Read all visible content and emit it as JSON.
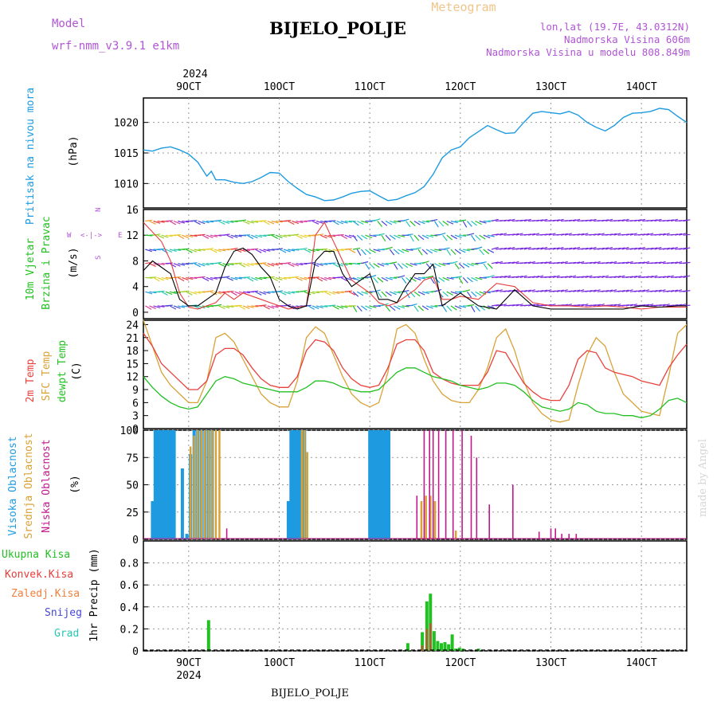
{
  "header": {
    "model_label": "Model",
    "model_name": "wrf-nmm_v3.9.1 e1km",
    "station": "BIJELO_POLJE",
    "product": "Meteogram",
    "lonlat": "lon,lat (19.7E, 43.0312N)",
    "elevation": "Nadmorska Visina 606m",
    "model_elevation": "Nadmorska Visina u modelu 808.849m"
  },
  "footer": {
    "station": "BIJELO_POLJE",
    "credit": "made by Angel"
  },
  "colors": {
    "pressure": "#1E9BE0",
    "wind_speed": "#000000",
    "gust": "#E83C3C",
    "t2m": "#E8413C",
    "sfc": "#D9A237",
    "dewpt": "#22C022",
    "high_cloud": "#1E9BE0",
    "mid_cloud": "#D9A237",
    "low_cloud": "#C0198C",
    "total_precip": "#22C022",
    "conv_precip": "#E83C3C",
    "frozen_precip": "#F07F3C",
    "snow": "#4646D8",
    "hail": "#28C8B4",
    "title_purple": "#B055D6",
    "meteogram_orange": "#F0C58A"
  },
  "chart_data": [
    {
      "panel": "pressure",
      "type": "line",
      "title": "Pritisak na nivou mora",
      "ylabel": "(hPa)",
      "ylim": [
        1006,
        1024
      ],
      "yticks": [
        1010,
        1015,
        1020
      ],
      "x_day_range": [
        8.5,
        14.5
      ],
      "x_top_year": "2024",
      "x_bottom_year": "2024",
      "x_tick_labels": [
        "9OCT",
        "10OCT",
        "11OCT",
        "12OCT",
        "13OCT",
        "14OCT"
      ],
      "x_tick_days": [
        9,
        10,
        11,
        12,
        13,
        14
      ],
      "x": [
        8.5,
        8.6,
        8.7,
        8.8,
        8.9,
        9.0,
        9.1,
        9.2,
        9.25,
        9.3,
        9.4,
        9.5,
        9.6,
        9.7,
        9.8,
        9.9,
        10.0,
        10.1,
        10.2,
        10.3,
        10.4,
        10.5,
        10.6,
        10.7,
        10.8,
        10.9,
        11.0,
        11.1,
        11.2,
        11.3,
        11.4,
        11.5,
        11.6,
        11.7,
        11.8,
        11.9,
        12.0,
        12.1,
        12.2,
        12.3,
        12.4,
        12.5,
        12.6,
        12.7,
        12.8,
        12.9,
        13.0,
        13.1,
        13.2,
        13.3,
        13.4,
        13.5,
        13.6,
        13.7,
        13.8,
        13.9,
        14.0,
        14.1,
        14.2,
        14.3,
        14.4,
        14.5
      ],
      "values": [
        1015.5,
        1015.3,
        1015.8,
        1016.0,
        1015.5,
        1014.8,
        1013.5,
        1011.2,
        1012.0,
        1010.6,
        1010.6,
        1010.2,
        1010.0,
        1010.3,
        1011.0,
        1011.8,
        1011.7,
        1010.3,
        1009.2,
        1008.2,
        1007.8,
        1007.2,
        1007.3,
        1007.8,
        1008.4,
        1008.7,
        1008.8,
        1008.0,
        1007.2,
        1007.4,
        1008.0,
        1008.5,
        1009.5,
        1011.5,
        1014.2,
        1015.5,
        1016.0,
        1017.5,
        1018.5,
        1019.5,
        1018.8,
        1018.2,
        1018.3,
        1020.0,
        1021.5,
        1021.8,
        1021.6,
        1021.4,
        1021.8,
        1021.2,
        1020.0,
        1019.2,
        1018.6,
        1019.5,
        1020.8,
        1021.5,
        1021.6,
        1021.8,
        1022.3,
        1022.1,
        1021.0,
        1020.0
      ]
    },
    {
      "panel": "wind",
      "type": "line",
      "title": "10m Vjetar",
      "subtitle": "Brzina i Pravac",
      "ylabel": "(m/s)",
      "compass": {
        "n": "N",
        "s": "S",
        "e": "E",
        "w": "W"
      },
      "ylim": [
        -1,
        16
      ],
      "yticks": [
        0,
        4,
        8,
        12,
        16
      ],
      "x": [
        8.5,
        8.6,
        8.7,
        8.8,
        8.9,
        9.0,
        9.1,
        9.2,
        9.3,
        9.4,
        9.5,
        9.6,
        9.7,
        9.8,
        9.9,
        10.0,
        10.1,
        10.2,
        10.3,
        10.4,
        10.5,
        10.6,
        10.7,
        10.8,
        10.9,
        11.0,
        11.1,
        11.2,
        11.3,
        11.4,
        11.5,
        11.6,
        11.7,
        11.8,
        11.9,
        12.0,
        12.2,
        12.4,
        12.6,
        12.8,
        13.0,
        13.2,
        13.4,
        13.6,
        13.8,
        14.0,
        14.2,
        14.4,
        14.5
      ],
      "speed": [
        6.5,
        8.0,
        7.0,
        6.0,
        2.0,
        1.0,
        1.0,
        2.0,
        3.0,
        7.0,
        9.5,
        10.0,
        9.0,
        7.0,
        5.5,
        2.0,
        1.0,
        0.5,
        1.0,
        8.0,
        9.5,
        9.5,
        6.0,
        4.0,
        5.0,
        6.0,
        2.0,
        2.0,
        1.5,
        4.0,
        6.0,
        6.0,
        7.5,
        1.0,
        2.0,
        3.0,
        1.0,
        0.5,
        3.5,
        1.0,
        0.5,
        0.5,
        0.5,
        0.5,
        0.5,
        1.0,
        0.8,
        1.0,
        1.0
      ],
      "gust": [
        14.0,
        12.5,
        11.0,
        8.0,
        3.0,
        0.8,
        0.5,
        1.0,
        1.5,
        3.0,
        2.0,
        3.0,
        2.5,
        2.0,
        1.5,
        1.0,
        0.5,
        0.8,
        1.0,
        12.0,
        14.0,
        11.0,
        8.0,
        5.0,
        4.0,
        3.0,
        1.5,
        1.0,
        1.5,
        2.5,
        3.5,
        5.0,
        5.5,
        2.0,
        2.0,
        2.5,
        2.0,
        4.5,
        4.0,
        1.5,
        1.0,
        1.0,
        0.8,
        1.0,
        0.8,
        0.5,
        0.8,
        0.8,
        0.8
      ]
    },
    {
      "panel": "temperature",
      "type": "line",
      "title": "2m Temp",
      "title2": "SFC Temp",
      "title3": "dewpt Temp",
      "ylabel": "(C)",
      "ylim": [
        0,
        25
      ],
      "yticks": [
        0,
        3,
        6,
        9,
        12,
        15,
        18,
        21,
        24
      ],
      "x": [
        8.5,
        8.6,
        8.7,
        8.8,
        8.9,
        9.0,
        9.1,
        9.2,
        9.3,
        9.4,
        9.5,
        9.6,
        9.7,
        9.8,
        9.9,
        10.0,
        10.1,
        10.2,
        10.3,
        10.4,
        10.5,
        10.6,
        10.7,
        10.8,
        10.9,
        11.0,
        11.1,
        11.2,
        11.3,
        11.4,
        11.5,
        11.6,
        11.7,
        11.8,
        11.9,
        12.0,
        12.1,
        12.2,
        12.3,
        12.4,
        12.5,
        12.6,
        12.7,
        12.8,
        12.9,
        13.0,
        13.1,
        13.2,
        13.3,
        13.4,
        13.5,
        13.6,
        13.7,
        13.8,
        13.9,
        14.0,
        14.1,
        14.2,
        14.3,
        14.4,
        14.5
      ],
      "series": [
        {
          "name": "2m Temp",
          "values": [
            22,
            19,
            15,
            13,
            11,
            9,
            9,
            11,
            17,
            18.5,
            18.5,
            17,
            14,
            11.5,
            10,
            9.5,
            9.5,
            12,
            18,
            20.5,
            20,
            18,
            14,
            11.5,
            10,
            9.5,
            10,
            14,
            19.5,
            20.5,
            20.5,
            18,
            13,
            11.5,
            10.5,
            10,
            10,
            10,
            13,
            18,
            17.5,
            14,
            10.5,
            8.5,
            7,
            6.5,
            6.5,
            10,
            16,
            18,
            17.5,
            14,
            13,
            12.5,
            12,
            11,
            10.5,
            10,
            14,
            17,
            19.5
          ]
        },
        {
          "name": "SFC Temp",
          "values": [
            25,
            19,
            13,
            10,
            8,
            6,
            6,
            11,
            21,
            22,
            20,
            16,
            12,
            8,
            6,
            5,
            5,
            11,
            21,
            23.5,
            22,
            17,
            12,
            8,
            6,
            5,
            6,
            13,
            23,
            24,
            22,
            16,
            11,
            8,
            6.5,
            6,
            6,
            9,
            14,
            21,
            23,
            18,
            11,
            6,
            3.5,
            2,
            1.5,
            2,
            10,
            17,
            21,
            19,
            13,
            8,
            6,
            4,
            3.5,
            3,
            12,
            22,
            24
          ]
        },
        {
          "name": "dewpt Temp",
          "values": [
            12,
            9.5,
            7.5,
            6,
            5,
            4.5,
            5,
            8,
            11,
            12,
            11.5,
            10.5,
            10,
            9.5,
            9,
            8.5,
            8.5,
            8.5,
            9.5,
            11,
            11,
            10.5,
            9.5,
            9,
            8.5,
            8.5,
            9,
            11,
            13,
            14,
            14,
            13,
            12,
            11.5,
            11,
            10,
            9.5,
            9,
            9.5,
            10.5,
            10.5,
            10,
            8.5,
            6.5,
            5,
            4.5,
            4,
            4.5,
            6,
            5.5,
            4,
            3.5,
            3.5,
            3,
            3,
            2.5,
            3,
            4.5,
            6.5,
            7,
            6
          ]
        }
      ]
    },
    {
      "panel": "cloud",
      "type": "bar",
      "title": "Visoka Oblacnost",
      "title2": "Srednja Oblacnost",
      "title3": "Niska Oblacnost",
      "ylabel": "(%)",
      "ylim": [
        0,
        100
      ],
      "yticks": [
        0,
        25,
        50,
        75,
        100
      ],
      "series": [
        {
          "name": "Visoka Oblacnost",
          "x": [
            8.6,
            8.63,
            8.66,
            8.69,
            8.72,
            8.75,
            8.78,
            8.81,
            8.84,
            8.93,
            8.98,
            9.02,
            9.06,
            9.1,
            9.14,
            9.18,
            9.22,
            9.26,
            10.1,
            10.13,
            10.16,
            10.19,
            10.22,
            10.25,
            10.28,
            11.0,
            11.03,
            11.06,
            11.09,
            11.12,
            11.15,
            11.18,
            11.21
          ],
          "values": [
            35,
            100,
            100,
            100,
            100,
            100,
            100,
            100,
            100,
            65,
            5,
            78,
            100,
            100,
            100,
            100,
            100,
            100,
            35,
            100,
            100,
            100,
            100,
            100,
            100,
            100,
            100,
            100,
            100,
            100,
            100,
            100,
            100
          ]
        },
        {
          "name": "Srednja Oblacnost",
          "x": [
            9.02,
            9.06,
            9.1,
            9.14,
            9.18,
            9.22,
            9.26,
            9.3,
            9.34,
            10.25,
            10.28,
            10.31,
            11.57,
            11.62,
            11.67,
            11.72,
            11.95
          ],
          "values": [
            85,
            95,
            100,
            100,
            100,
            100,
            100,
            100,
            100,
            100,
            100,
            80,
            35,
            40,
            40,
            35,
            8
          ]
        },
        {
          "name": "Niska Oblacnost",
          "x": [
            9.42,
            11.52,
            11.6,
            11.66,
            11.7,
            11.76,
            11.84,
            11.92,
            12.02,
            12.12,
            12.18,
            12.32,
            12.58,
            12.87,
            13.0,
            13.05,
            13.12,
            13.2,
            13.28
          ],
          "values": [
            10,
            40,
            100,
            100,
            100,
            100,
            100,
            100,
            100,
            95,
            75,
            32,
            50,
            7,
            10,
            10,
            5,
            5,
            5
          ]
        }
      ]
    },
    {
      "panel": "precip",
      "type": "bar",
      "title": "Ukupna Kisa",
      "title2": "Konvek.Kisa",
      "title3": "Zaledj.Kisa",
      "title4": "Snijeg",
      "title5": "Grad",
      "ylabel": "1hr Precip (mm)",
      "ylim": [
        0,
        1.0
      ],
      "yticks": [
        0,
        0.2,
        0.4,
        0.6,
        0.8
      ],
      "series": [
        {
          "name": "Ukupna Kisa",
          "x": [
            9.22,
            11.42,
            11.58,
            11.63,
            11.67,
            11.71,
            11.75,
            11.79,
            11.83,
            11.87,
            11.91,
            11.95,
            11.99,
            12.03,
            12.2
          ],
          "values": [
            0.28,
            0.07,
            0.17,
            0.45,
            0.52,
            0.18,
            0.09,
            0.07,
            0.08,
            0.06,
            0.15,
            0.02,
            0.03,
            0.02,
            0.02
          ]
        },
        {
          "name": "Konvek.Kisa",
          "x": [
            11.58,
            11.63,
            11.67
          ],
          "values": [
            0.05,
            0.2,
            0.25
          ]
        }
      ]
    }
  ]
}
